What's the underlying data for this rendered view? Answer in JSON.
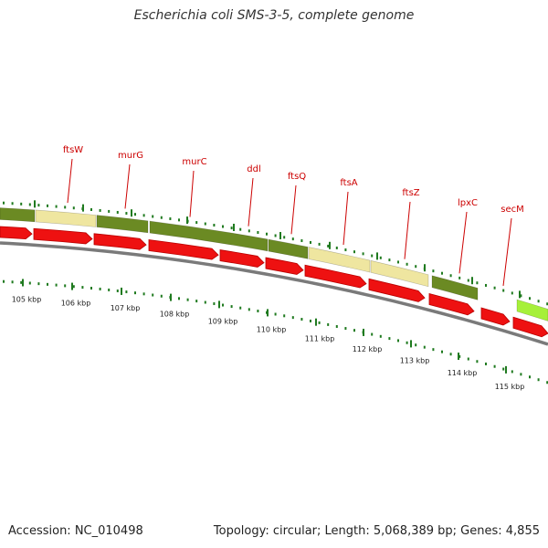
{
  "title": "Escherichia coli SMS-3-5, complete genome",
  "footer": {
    "accession": "Accession: NC_010498",
    "summary": "Topology: circular; Length: 5,068,389 bp; Genes: 4,855"
  },
  "colors": {
    "cds": "#ee1111",
    "cds_dark": "#b80000",
    "band_dark": "#6b8a23",
    "band_light": "#efe6a0",
    "band_bright": "#a6f03a",
    "backbone": "#7a7a7a",
    "ticks": "#1f7a1f",
    "gene_label": "#cc0000"
  },
  "scale_ticks": [
    "105 kbp",
    "106 kbp",
    "107 kbp",
    "108 kbp",
    "109 kbp",
    "110 kbp",
    "111 kbp",
    "112 kbp",
    "113 kbp",
    "114 kbp",
    "115 kbp"
  ],
  "genes": [
    "ftsW",
    "murG",
    "murC",
    "ddl",
    "ftsQ",
    "ftsA",
    "ftsZ",
    "lpxC",
    "secM"
  ]
}
